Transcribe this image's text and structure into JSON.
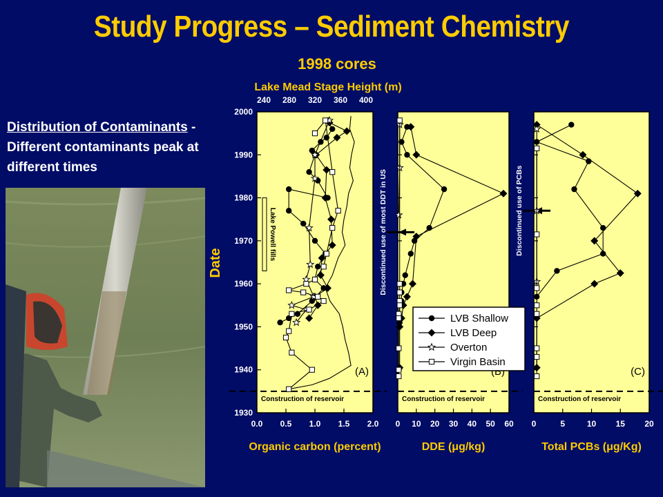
{
  "slide": {
    "title": "Study Progress – Sediment Chemistry",
    "subtitle": "1998 cores",
    "lead_underlined": "Distribution of Contaminants",
    "lead_rest": " - Different contaminants peak at different times"
  },
  "colors": {
    "background": "#000c66",
    "title": "#ffcc00",
    "panel": "#ffff99"
  },
  "chart_data": {
    "type": "line",
    "ylabel": "Date",
    "ylim": [
      1930,
      2000
    ],
    "yticks": [
      1930,
      1940,
      1950,
      1960,
      1970,
      1980,
      1990,
      2000
    ],
    "top_axis": {
      "label": "Lake Mead Stage Height (m)",
      "ticks": [
        "240",
        "280",
        "320",
        "360",
        "400"
      ]
    },
    "construction_note": "Construction of reservoir",
    "construction_year": 1935,
    "legend": [
      "LVB Shallow",
      "LVB Deep",
      "Overton",
      "Virgin Basin"
    ],
    "panels": [
      {
        "tag": "(A)",
        "xlabel": "Organic carbon  (percent)",
        "xlim": [
          0,
          2
        ],
        "xticks": [
          "0.0",
          "0.5",
          "1.0",
          "1.5",
          "2.0"
        ],
        "annotation": "Lake Powell fills",
        "annotation_years": [
          1963,
          1980
        ],
        "stage_height": [
          [
            1.62,
            1999
          ],
          [
            1.6,
            1996
          ],
          [
            1.68,
            1993
          ],
          [
            1.63,
            1990
          ],
          [
            1.6,
            1987
          ],
          [
            1.66,
            1984
          ],
          [
            1.58,
            1981
          ],
          [
            1.55,
            1978
          ],
          [
            1.5,
            1975
          ],
          [
            1.47,
            1972
          ],
          [
            1.52,
            1969
          ],
          [
            1.4,
            1966
          ],
          [
            1.3,
            1962
          ],
          [
            1.18,
            1959
          ],
          [
            1.26,
            1956
          ],
          [
            1.42,
            1953
          ],
          [
            1.48,
            1950
          ],
          [
            1.52,
            1947
          ],
          [
            1.58,
            1944
          ],
          [
            1.62,
            1941
          ],
          [
            1.25,
            1938
          ],
          [
            0.95,
            1936.5
          ],
          [
            0.55,
            1935.5
          ]
        ],
        "series": [
          {
            "name": "LVB Shallow",
            "points": [
              [
                1.22,
                1998
              ],
              [
                1.3,
                1996
              ],
              [
                1.2,
                1994
              ],
              [
                1.1,
                1993
              ],
              [
                0.95,
                1991
              ],
              [
                1.0,
                1990
              ],
              [
                0.9,
                1986
              ],
              [
                1.05,
                1984
              ],
              [
                1.22,
                1980
              ],
              [
                0.55,
                1982
              ],
              [
                0.55,
                1977
              ],
              [
                0.8,
                1974
              ],
              [
                1.0,
                1970
              ],
              [
                1.18,
                1967
              ],
              [
                1.05,
                1964
              ],
              [
                1.0,
                1961
              ],
              [
                1.15,
                1959
              ],
              [
                0.95,
                1956
              ],
              [
                0.7,
                1953
              ],
              [
                0.55,
                1952
              ],
              [
                0.4,
                1951
              ]
            ]
          },
          {
            "name": "LVB Deep",
            "points": [
              [
                1.25,
                1997.5
              ],
              [
                1.55,
                1995.5
              ],
              [
                1.38,
                1994
              ],
              [
                1.02,
                1990
              ],
              [
                1.2,
                1986.5
              ],
              [
                1.18,
                1980
              ],
              [
                1.28,
                1975
              ],
              [
                1.3,
                1969
              ],
              [
                1.12,
                1966
              ],
              [
                1.1,
                1962
              ],
              [
                1.22,
                1959
              ],
              [
                1.0,
                1957
              ],
              [
                1.05,
                1955
              ],
              [
                0.9,
                1952
              ]
            ]
          },
          {
            "name": "Overton",
            "points": [
              [
                1.25,
                1998
              ],
              [
                1.0,
                1990
              ],
              [
                1.0,
                1984.5
              ],
              [
                0.9,
                1973
              ],
              [
                0.92,
                1964.5
              ],
              [
                0.85,
                1961
              ],
              [
                0.98,
                1957
              ],
              [
                0.6,
                1955
              ],
              [
                0.85,
                1954
              ],
              [
                0.68,
                1951
              ]
            ]
          },
          {
            "name": "Virgin Basin",
            "points": [
              [
                1.0,
                1995
              ],
              [
                1.18,
                1998
              ],
              [
                1.3,
                1986
              ],
              [
                1.4,
                1977
              ],
              [
                1.3,
                1973
              ],
              [
                1.2,
                1967
              ],
              [
                1.15,
                1964
              ],
              [
                1.0,
                1961
              ],
              [
                0.85,
                1960
              ],
              [
                0.55,
                1958.5
              ],
              [
                0.8,
                1958
              ],
              [
                1.05,
                1957
              ],
              [
                1.15,
                1956
              ],
              [
                0.9,
                1954
              ],
              [
                0.6,
                1953
              ],
              [
                0.55,
                1949
              ],
              [
                0.5,
                1947.5
              ],
              [
                0.6,
                1944
              ],
              [
                0.95,
                1940
              ],
              [
                0.55,
                1935.5
              ]
            ]
          }
        ]
      },
      {
        "tag": "(B)",
        "xlabel": "DDE (μg/kg)",
        "xlim": [
          0,
          60
        ],
        "xticks": [
          "0",
          "10",
          "20",
          "30",
          "40",
          "50",
          "60"
        ],
        "annotation": "Discontinued use of most DDT in US",
        "annotation_year": 1972,
        "series": [
          {
            "name": "LVB Shallow",
            "points": [
              [
                5,
                1996.5
              ],
              [
                2,
                1993
              ],
              [
                5,
                1990
              ],
              [
                25,
                1982
              ],
              [
                17,
                1973
              ],
              [
                9,
                1970
              ],
              [
                7,
                1967
              ],
              [
                4,
                1962
              ],
              [
                3,
                1960
              ],
              [
                2,
                1958
              ],
              [
                2,
                1956
              ],
              [
                1,
                1955
              ],
              [
                1,
                1951
              ]
            ]
          },
          {
            "name": "LVB Deep",
            "points": [
              [
                7,
                1996.5
              ],
              [
                10,
                1990
              ],
              [
                57,
                1981
              ],
              [
                10,
                1971
              ],
              [
                8,
                1960
              ],
              [
                5,
                1957
              ],
              [
                3,
                1955
              ],
              [
                2,
                1952
              ],
              [
                1,
                1950
              ],
              [
                1,
                1940.5
              ]
            ]
          },
          {
            "name": "Overton",
            "points": [
              [
                1,
                1997
              ],
              [
                1,
                1987
              ],
              [
                0.5,
                1976
              ]
            ]
          },
          {
            "name": "Virgin Basin",
            "points": [
              [
                1,
                1998
              ],
              [
                1,
                1960
              ],
              [
                1,
                1958
              ],
              [
                1,
                1956
              ],
              [
                1,
                1955
              ],
              [
                0.5,
                1953
              ],
              [
                0.5,
                1952
              ],
              [
                0.5,
                1945
              ],
              [
                0.5,
                1940
              ],
              [
                0.5,
                1938.5
              ]
            ]
          }
        ]
      },
      {
        "tag": "(C)",
        "xlabel": "Total PCBs (μg/Kg)",
        "xlim": [
          0,
          20
        ],
        "xticks": [
          "0",
          "5",
          "10",
          "15",
          "20"
        ],
        "annotation": "Discontinued use of PCBs",
        "annotation_year": 1977,
        "series": [
          {
            "name": "LVB Shallow",
            "points": [
              [
                6.5,
                1997
              ],
              [
                0.5,
                1993
              ],
              [
                9.5,
                1988.5
              ],
              [
                7,
                1982
              ],
              [
                12,
                1973
              ],
              [
                12,
                1967
              ],
              [
                4,
                1963
              ],
              [
                0.5,
                1957
              ]
            ]
          },
          {
            "name": "LVB Deep",
            "points": [
              [
                0.5,
                1997
              ],
              [
                8.5,
                1990
              ],
              [
                18,
                1981
              ],
              [
                10.5,
                1970
              ],
              [
                15,
                1962.5
              ],
              [
                10.5,
                1960
              ],
              [
                0.5,
                1952
              ],
              [
                0.5,
                1940.5
              ]
            ]
          },
          {
            "name": "Overton",
            "points": [
              [
                0.5,
                1996
              ],
              [
                0.5,
                1977
              ],
              [
                0.5,
                1960.5
              ]
            ]
          },
          {
            "name": "Virgin Basin",
            "points": [
              [
                0.5,
                1991.5
              ],
              [
                0.5,
                1971.5
              ],
              [
                0.5,
                1959
              ],
              [
                0.5,
                1955
              ],
              [
                0.5,
                1953
              ],
              [
                0.5,
                1945
              ],
              [
                0.5,
                1943
              ],
              [
                0.5,
                1938.5
              ]
            ]
          }
        ]
      }
    ]
  }
}
